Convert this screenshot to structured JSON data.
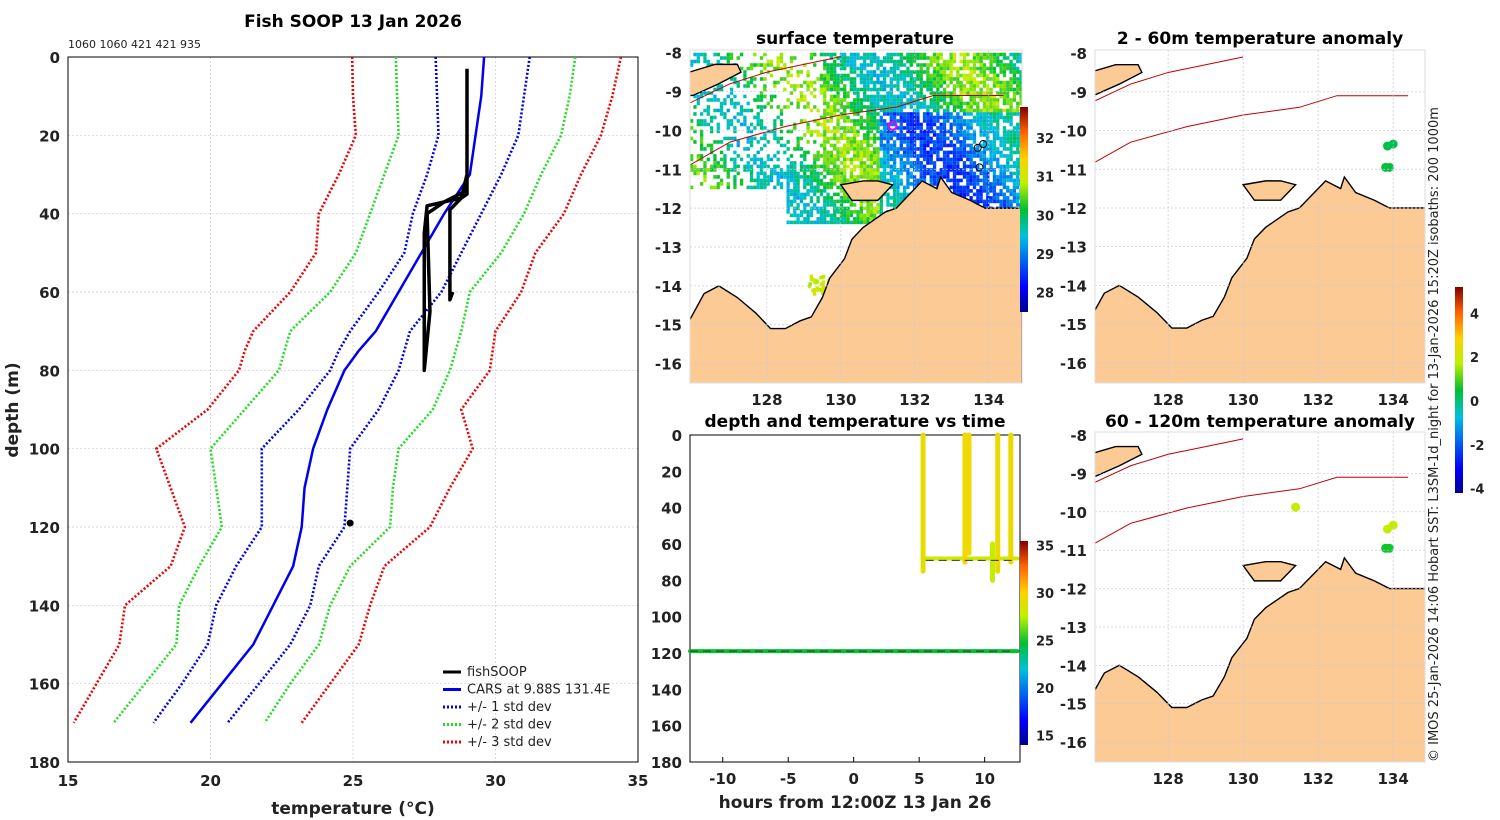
{
  "chart_data": [
    {
      "type": "line",
      "title": "Fish SOOP 13 Jan 2026",
      "subtitle": "1060 1060 421 421 935",
      "xlabel": "temperature (°C)",
      "xlabel_main": "temperature (",
      "xlabel_sup": "o",
      "xlabel_unit": "C)",
      "ylabel": "depth (m)",
      "xlim": [
        15,
        35
      ],
      "ylim": [
        180,
        0
      ],
      "xticks": [
        "15",
        "20",
        "25",
        "30",
        "35"
      ],
      "yticks": [
        "0",
        "20",
        "40",
        "60",
        "80",
        "100",
        "120",
        "140",
        "160",
        "180"
      ],
      "grid": true,
      "legend_position": "bottom-right",
      "depths": [
        0,
        10,
        20,
        30,
        40,
        50,
        60,
        70,
        75,
        80,
        90,
        100,
        110,
        120,
        130,
        140,
        150,
        160,
        170
      ],
      "series": [
        {
          "name": "fishSOOP",
          "color": "#000000",
          "style": "solid",
          "points": [
            [
              29.0,
              3
            ],
            [
              29.0,
              35
            ],
            [
              28.8,
              36
            ],
            [
              27.6,
              38
            ],
            [
              27.5,
              45
            ],
            [
              27.5,
              75
            ],
            [
              27.5,
              80
            ],
            [
              27.7,
              65
            ],
            [
              27.6,
              40
            ],
            [
              28.2,
              37
            ],
            [
              29.0,
              34
            ],
            [
              29.0,
              30
            ],
            [
              28.8,
              36
            ],
            [
              28.4,
              39
            ],
            [
              28.4,
              62
            ],
            [
              28.5,
              60
            ]
          ],
          "extra_points": [
            [
              24.9,
              119
            ]
          ]
        },
        {
          "name": "CARS at 9.88S 131.4E",
          "color": "#0000ee",
          "style": "solid",
          "temps": [
            29.6,
            29.5,
            29.3,
            29.1,
            28.2,
            27.4,
            26.6,
            25.8,
            25.2,
            24.7,
            24.1,
            23.6,
            23.3,
            23.2,
            22.9,
            22.2,
            21.5,
            20.4,
            19.3
          ]
        },
        {
          "name": "+/- 1 std dev",
          "color": "#0000ee",
          "style": "dotted",
          "lower": [
            27.9,
            27.95,
            28.0,
            27.6,
            27.1,
            26.8,
            25.9,
            24.9,
            24.5,
            24.2,
            23.1,
            21.8,
            21.8,
            21.8,
            20.9,
            20.2,
            19.9,
            19.0,
            18.0
          ],
          "upper": [
            31.2,
            31.0,
            30.8,
            30.2,
            29.5,
            28.8,
            28.1,
            27.0,
            26.8,
            26.6,
            25.9,
            24.9,
            24.8,
            24.7,
            23.8,
            23.5,
            22.8,
            21.7,
            20.6
          ]
        },
        {
          "name": "+/- 2 std dev",
          "color": "#22dd22",
          "style": "dotted",
          "lower": [
            26.5,
            26.55,
            26.6,
            26.1,
            25.6,
            25.1,
            24.2,
            22.8,
            22.6,
            22.4,
            21.2,
            20.0,
            20.2,
            20.4,
            19.6,
            18.9,
            18.8,
            17.7,
            16.6
          ],
          "upper": [
            32.8,
            32.6,
            32.3,
            31.6,
            31.0,
            30.2,
            29.1,
            28.8,
            28.6,
            28.4,
            27.8,
            26.6,
            26.4,
            26.3,
            24.9,
            24.2,
            23.8,
            22.8,
            21.9
          ]
        },
        {
          "name": "+/- 3 std dev",
          "color": "#ee0000",
          "style": "dotted",
          "lower": [
            24.97,
            25.0,
            25.1,
            24.5,
            23.8,
            23.7,
            22.8,
            21.5,
            21.2,
            21.0,
            19.9,
            18.1,
            18.6,
            19.1,
            18.6,
            17.0,
            16.8,
            16.0,
            15.2
          ],
          "upper": [
            34.4,
            34.1,
            33.7,
            33.0,
            32.4,
            31.4,
            30.9,
            30.0,
            29.9,
            29.8,
            28.8,
            29.2,
            28.4,
            27.7,
            26.1,
            25.6,
            25.2,
            24.2,
            23.2
          ]
        }
      ]
    },
    {
      "type": "heatmap",
      "title": "surface temperature",
      "xticks": [
        "128",
        "130",
        "132",
        "134"
      ],
      "yticks": [
        "-8",
        "-9",
        "-10",
        "-11",
        "-12",
        "-13",
        "-14",
        "-15",
        "-16"
      ],
      "colorbar": {
        "ticks": [
          "32",
          "31",
          "30",
          "29",
          "28"
        ],
        "range": [
          27.5,
          32.8
        ]
      },
      "markers": [
        {
          "name": "CARS location",
          "lon": 131.4,
          "lat": -9.88,
          "color": "#ee00ee"
        },
        {
          "name": "fishSOOP",
          "lon": 133.85,
          "lat": -10.35,
          "color": "#000000"
        },
        {
          "name": "fishSOOP",
          "lon": 133.7,
          "lat": -10.45,
          "color": "#000000"
        },
        {
          "name": "fishSOOP",
          "lon": 133.75,
          "lat": -10.95,
          "color": "#000000"
        }
      ]
    },
    {
      "type": "heatmap",
      "title": "2 - 60m temperature anomaly",
      "xticks": [
        "128",
        "130",
        "132",
        "134"
      ],
      "yticks": [
        "-8",
        "-9",
        "-10",
        "-11",
        "-12",
        "-13",
        "-14",
        "-15",
        "-16"
      ],
      "points": [
        [
          134.0,
          -10.35,
          0.3
        ],
        [
          133.85,
          -10.4,
          0.3
        ],
        [
          133.8,
          -10.95,
          0.4
        ],
        [
          133.9,
          -10.95,
          0.4
        ]
      ]
    },
    {
      "type": "heatmap",
      "title": "60 - 120m temperature anomaly",
      "xticks": [
        "128",
        "130",
        "132",
        "134"
      ],
      "yticks": [
        "-8",
        "-9",
        "-10",
        "-11",
        "-12",
        "-13",
        "-14",
        "-15",
        "-16"
      ],
      "points": [
        [
          131.4,
          -9.88,
          1.8
        ],
        [
          134.0,
          -10.35,
          1.8
        ],
        [
          133.85,
          -10.45,
          1.8
        ],
        [
          133.8,
          -10.95,
          0.6
        ],
        [
          133.9,
          -10.95,
          0.6
        ]
      ],
      "colorbar": {
        "ticks": [
          "4",
          "2",
          "0",
          "-2",
          "-4"
        ],
        "range": [
          -4.2,
          5.2
        ]
      }
    },
    {
      "type": "scatter",
      "title": "depth and temperature vs time",
      "xlabel": "hours from 12:00Z 13 Jan 26",
      "xticks": [
        "-10",
        "-5",
        "0",
        "5",
        "10"
      ],
      "yticks": [
        "0",
        "20",
        "40",
        "60",
        "80",
        "100",
        "120",
        "140",
        "160",
        "180"
      ],
      "xlim": [
        -12.5,
        12.7
      ],
      "ylim": [
        180,
        0
      ],
      "colorbar": {
        "ticks": [
          "35",
          "30",
          "25",
          "20",
          "15"
        ],
        "range": [
          14,
          35.5
        ]
      },
      "reference_depths": [
        69,
        119
      ],
      "segments": [
        {
          "t": [
            -12.5,
            12.5
          ],
          "depth": [
            119,
            119
          ],
          "temp": 24.8
        },
        {
          "t": [
            5.3,
            12.5
          ],
          "depth": [
            68,
            68
          ],
          "temp": 28.0
        },
        {
          "t": [
            5.3,
            5.3
          ],
          "depth": [
            0,
            75
          ],
          "temp": 29.0
        },
        {
          "t": [
            8.5,
            8.5
          ],
          "depth": [
            0,
            70
          ],
          "temp": 29.5
        },
        {
          "t": [
            8.8,
            8.8
          ],
          "depth": [
            0,
            65
          ],
          "temp": 29.5
        },
        {
          "t": [
            11.0,
            11.0
          ],
          "depth": [
            0,
            75
          ],
          "temp": 29.3
        },
        {
          "t": [
            12.0,
            12.0
          ],
          "depth": [
            0,
            70
          ],
          "temp": 29.3
        },
        {
          "t": [
            10.6,
            10.6
          ],
          "depth": [
            60,
            80
          ],
          "temp": 27.8
        }
      ]
    }
  ],
  "credit": "© IMOS 25-Jan-2026 14:06 Hobart SST: L3SM-1d_night for 13-Jan-2026 15:20Z isobaths: 200  1000m"
}
